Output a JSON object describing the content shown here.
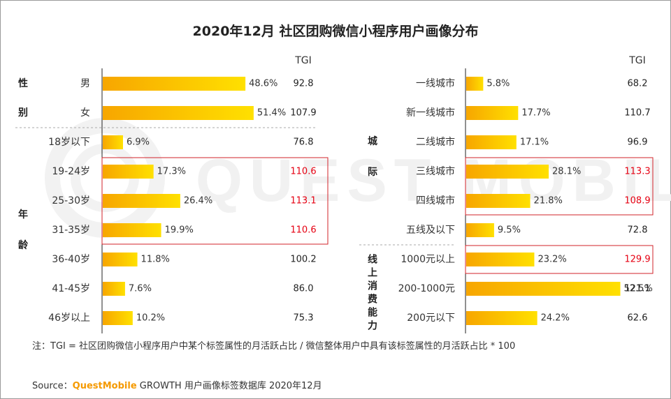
{
  "title": "2020年12月 社区团购微信小程序用户画像分布",
  "watermark": "QUEST MOBILE",
  "note": "注：TGI = 社区团购微信小程序用户中某个标签属性的月活跃占比 / 微信整体用户中具有该标签属性的月活跃占比 * 100",
  "source": {
    "prefix": "Source：",
    "brand": "QuestMobile",
    "suffix": " GROWTH 用户画像标签数据库 2020年12月"
  },
  "colors": {
    "bar_start": "#f7a600",
    "bar_end": "#ffe000",
    "highlight_tgi": "#e60012",
    "normal_tgi": "#222222",
    "highlight_box": "#d2232a",
    "axis": "#222222"
  },
  "chart_data": [
    {
      "type": "bar",
      "orientation": "horizontal",
      "tgi_header": "TGI",
      "value_unit": "%",
      "groups": [
        {
          "label_chars": [
            "性",
            "别"
          ],
          "categories": [
            "男",
            "女"
          ],
          "values": [
            48.6,
            51.4
          ],
          "tgi": [
            92.8,
            107.9
          ],
          "highlight": [
            false,
            false
          ]
        },
        {
          "label_chars": [
            "年",
            "龄"
          ],
          "categories": [
            "18岁以下",
            "19-24岁",
            "25-30岁",
            "31-35岁",
            "36-40岁",
            "41-45岁",
            "46岁以上"
          ],
          "values": [
            6.9,
            17.3,
            26.4,
            19.9,
            11.8,
            7.6,
            10.2
          ],
          "tgi": [
            76.8,
            110.6,
            113.1,
            110.6,
            100.2,
            86.0,
            75.3
          ],
          "highlight": [
            false,
            true,
            true,
            true,
            false,
            false,
            false
          ]
        }
      ]
    },
    {
      "type": "bar",
      "orientation": "horizontal",
      "tgi_header": "TGI",
      "value_unit": "%",
      "groups": [
        {
          "label_chars": [
            "城",
            "际"
          ],
          "categories": [
            "一线城市",
            "新一线城市",
            "二线城市",
            "三线城市",
            "四线城市",
            "五线及以下"
          ],
          "values": [
            5.8,
            17.7,
            17.1,
            28.1,
            21.8,
            9.5
          ],
          "tgi": [
            68.2,
            110.7,
            96.9,
            113.3,
            108.9,
            72.8
          ],
          "highlight": [
            false,
            false,
            false,
            true,
            true,
            false
          ]
        },
        {
          "label_chars": [
            "线",
            "上",
            "消",
            "费",
            "能",
            "力"
          ],
          "categories": [
            "1000元以上",
            "200-1000元",
            "200元以下"
          ],
          "values": [
            23.2,
            52.5,
            24.2
          ],
          "tgi": [
            129.9,
            121.1,
            62.6
          ],
          "highlight": [
            true,
            false,
            false
          ]
        }
      ]
    }
  ]
}
